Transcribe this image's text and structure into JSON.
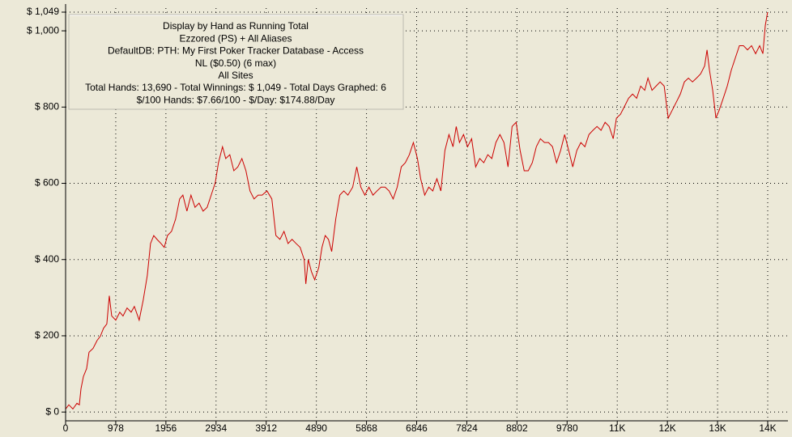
{
  "chart_data": {
    "type": "line",
    "info_lines": [
      "Display by Hand as Running Total",
      "Ezzored (PS) + All Aliases",
      "DefaultDB: PTH: My First Poker Tracker Database - Access",
      "NL ($0.50) (6 max)",
      "All Sites",
      "Total Hands: 13,690 - Total Winnings: $ 1,049 - Total Days Graphed: 6",
      "$/100 Hands: $7.66/100 - $/Day: $174.88/Day"
    ],
    "xlim": [
      0,
      13692
    ],
    "ylim": [
      -23,
      1049
    ],
    "xticks": [
      0,
      978,
      1956,
      2934,
      3912,
      4890,
      5868,
      6846,
      7824,
      8802,
      9780,
      {
        "value": 10758,
        "label": "11K"
      },
      {
        "value": 11736,
        "label": "12K"
      },
      {
        "value": 12714,
        "label": "13K"
      },
      {
        "value": 13692,
        "label": "14K"
      }
    ],
    "yticks": [
      {
        "value": 0,
        "label": "$ 0"
      },
      {
        "value": 200,
        "label": "$ 200"
      },
      {
        "value": 400,
        "label": "$ 400"
      },
      {
        "value": 600,
        "label": "$ 600"
      },
      {
        "value": 800,
        "label": "$ 800"
      },
      {
        "value": 1000,
        "label": "$ 1,000"
      },
      {
        "value": 1049,
        "label": "$ 1,049"
      }
    ],
    "grid": true,
    "series": [
      {
        "color": "#cc0000",
        "x": [
          0,
          63,
          142,
          221,
          268,
          300,
          347,
          410,
          457,
          536,
          615,
          678,
          741,
          804,
          852,
          899,
          978,
          1057,
          1120,
          1199,
          1278,
          1341,
          1435,
          1514,
          1593,
          1656,
          1719,
          1782,
          1861,
          1924,
          1987,
          2066,
          2145,
          2224,
          2287,
          2366,
          2445,
          2524,
          2603,
          2681,
          2760,
          2839,
          2918,
          2981,
          3060,
          3123,
          3202,
          3281,
          3359,
          3438,
          3517,
          3596,
          3675,
          3754,
          3833,
          3927,
          4022,
          4101,
          4180,
          4259,
          4338,
          4416,
          4495,
          4574,
          4653,
          4685,
          4732,
          4795,
          4858,
          4937,
          5000,
          5063,
          5126,
          5189,
          5268,
          5347,
          5426,
          5505,
          5599,
          5678,
          5757,
          5836,
          5915,
          5994,
          6073,
          6152,
          6230,
          6309,
          6388,
          6467,
          6546,
          6625,
          6703,
          6782,
          6861,
          6924,
          7003,
          7082,
          7161,
          7240,
          7318,
          7397,
          7476,
          7555,
          7618,
          7681,
          7760,
          7839,
          7918,
          7997,
          8076,
          8155,
          8233,
          8312,
          8391,
          8470,
          8549,
          8628,
          8707,
          8786,
          8864,
          8943,
          9022,
          9101,
          9180,
          9259,
          9338,
          9417,
          9495,
          9574,
          9653,
          9732,
          9811,
          9890,
          9969,
          10048,
          10127,
          10206,
          10284,
          10363,
          10442,
          10521,
          10600,
          10679,
          10742,
          10821,
          10900,
          10979,
          11057,
          11136,
          11215,
          11294,
          11357,
          11436,
          11515,
          11594,
          11673,
          11752,
          11831,
          11910,
          11988,
          12067,
          12146,
          12225,
          12304,
          12383,
          12462,
          12509,
          12556,
          12619,
          12682,
          12746,
          12825,
          12903,
          12982,
          13061,
          13140,
          13219,
          13298,
          13377,
          13456,
          13535,
          13598,
          13645,
          13690
        ],
        "values": [
          8,
          19,
          8,
          23,
          19,
          61,
          93,
          114,
          157,
          167,
          188,
          199,
          220,
          231,
          305,
          252,
          241,
          262,
          252,
          273,
          262,
          277,
          241,
          294,
          358,
          442,
          463,
          453,
          442,
          432,
          463,
          474,
          506,
          559,
          569,
          527,
          569,
          537,
          548,
          527,
          537,
          569,
          601,
          654,
          696,
          665,
          675,
          633,
          643,
          665,
          633,
          580,
          559,
          569,
          569,
          580,
          559,
          463,
          453,
          474,
          442,
          453,
          442,
          432,
          400,
          336,
          400,
          368,
          347,
          379,
          432,
          463,
          453,
          421,
          506,
          569,
          580,
          569,
          590,
          643,
          590,
          569,
          590,
          569,
          580,
          590,
          590,
          580,
          559,
          590,
          643,
          654,
          675,
          707,
          665,
          612,
          569,
          590,
          580,
          612,
          580,
          686,
          728,
          696,
          749,
          707,
          728,
          696,
          717,
          643,
          665,
          654,
          675,
          665,
          707,
          728,
          707,
          643,
          749,
          760,
          686,
          633,
          633,
          654,
          696,
          717,
          707,
          707,
          696,
          654,
          686,
          728,
          686,
          643,
          686,
          707,
          696,
          728,
          739,
          749,
          739,
          760,
          749,
          717,
          771,
          781,
          802,
          823,
          834,
          823,
          855,
          844,
          876,
          844,
          855,
          866,
          855,
          771,
          792,
          813,
          834,
          866,
          876,
          866,
          876,
          887,
          908,
          950,
          897,
          844,
          771,
          792,
          823,
          855,
          897,
          929,
          961,
          961,
          950,
          961,
          940,
          961,
          940,
          1014,
          1049
        ]
      }
    ]
  }
}
